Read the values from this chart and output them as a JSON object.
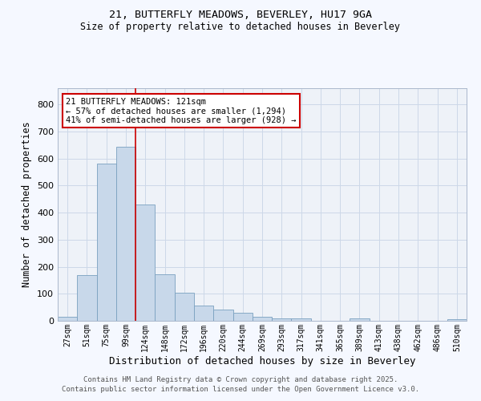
{
  "title1": "21, BUTTERFLY MEADOWS, BEVERLEY, HU17 9GA",
  "title2": "Size of property relative to detached houses in Beverley",
  "xlabel": "Distribution of detached houses by size in Beverley",
  "ylabel": "Number of detached properties",
  "bar_labels": [
    "27sqm",
    "51sqm",
    "75sqm",
    "99sqm",
    "124sqm",
    "148sqm",
    "172sqm",
    "196sqm",
    "220sqm",
    "244sqm",
    "269sqm",
    "293sqm",
    "317sqm",
    "341sqm",
    "365sqm",
    "389sqm",
    "413sqm",
    "438sqm",
    "462sqm",
    "486sqm",
    "510sqm"
  ],
  "bar_values": [
    15,
    168,
    582,
    643,
    430,
    173,
    103,
    57,
    42,
    30,
    15,
    10,
    10,
    0,
    0,
    8,
    0,
    0,
    0,
    0,
    6
  ],
  "bar_color": "#c8d8ea",
  "bar_edge_color": "#7aa0c0",
  "vline_color": "#cc0000",
  "annotation_text": "21 BUTTERFLY MEADOWS: 121sqm\n← 57% of detached houses are smaller (1,294)\n41% of semi-detached houses are larger (928) →",
  "annotation_box_color": "#ffffff",
  "annotation_box_edge": "#cc0000",
  "ylim": [
    0,
    860
  ],
  "yticks": [
    0,
    100,
    200,
    300,
    400,
    500,
    600,
    700,
    800
  ],
  "grid_color": "#ccd8e8",
  "bg_color": "#eef2f8",
  "fig_bg_color": "#f5f8ff",
  "footer1": "Contains HM Land Registry data © Crown copyright and database right 2025.",
  "footer2": "Contains public sector information licensed under the Open Government Licence v3.0."
}
